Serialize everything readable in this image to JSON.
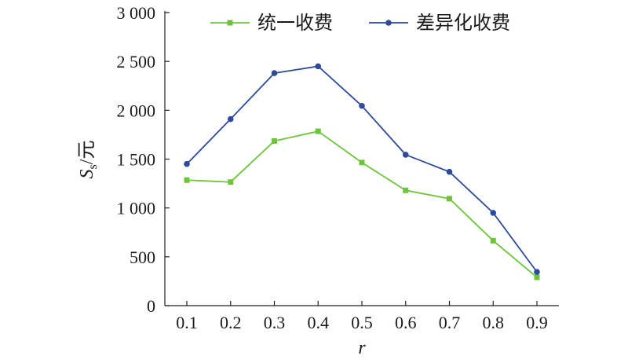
{
  "chart_data": {
    "type": "line",
    "x": [
      0.1,
      0.2,
      0.3,
      0.4,
      0.5,
      0.6,
      0.7,
      0.8,
      0.9
    ],
    "x_ticks": [
      "0.1",
      "0.2",
      "0.3",
      "0.4",
      "0.5",
      "0.6",
      "0.7",
      "0.8",
      "0.9"
    ],
    "y_ticks": [
      {
        "value": 0,
        "label": "0"
      },
      {
        "value": 500,
        "label": "500"
      },
      {
        "value": 1000,
        "label": "1 000"
      },
      {
        "value": 1500,
        "label": "1 500"
      },
      {
        "value": 2000,
        "label": "2 000"
      },
      {
        "value": 2500,
        "label": "2 500"
      },
      {
        "value": 3000,
        "label": "3 000"
      }
    ],
    "ylim": [
      0,
      3000
    ],
    "xlabel": "r",
    "ylabel": {
      "main": "S",
      "sub": "s",
      "rest": "/元"
    },
    "grid": false,
    "legend_position": "top",
    "series": [
      {
        "name": "统一收费",
        "color": "#6cc43a",
        "marker": "square",
        "values": [
          1285,
          1265,
          1685,
          1785,
          1465,
          1180,
          1095,
          665,
          290
        ]
      },
      {
        "name": "差异化收费",
        "color": "#2e4a9a",
        "marker": "circle",
        "values": [
          1450,
          1910,
          2380,
          2450,
          2045,
          1545,
          1370,
          950,
          345
        ]
      }
    ]
  }
}
